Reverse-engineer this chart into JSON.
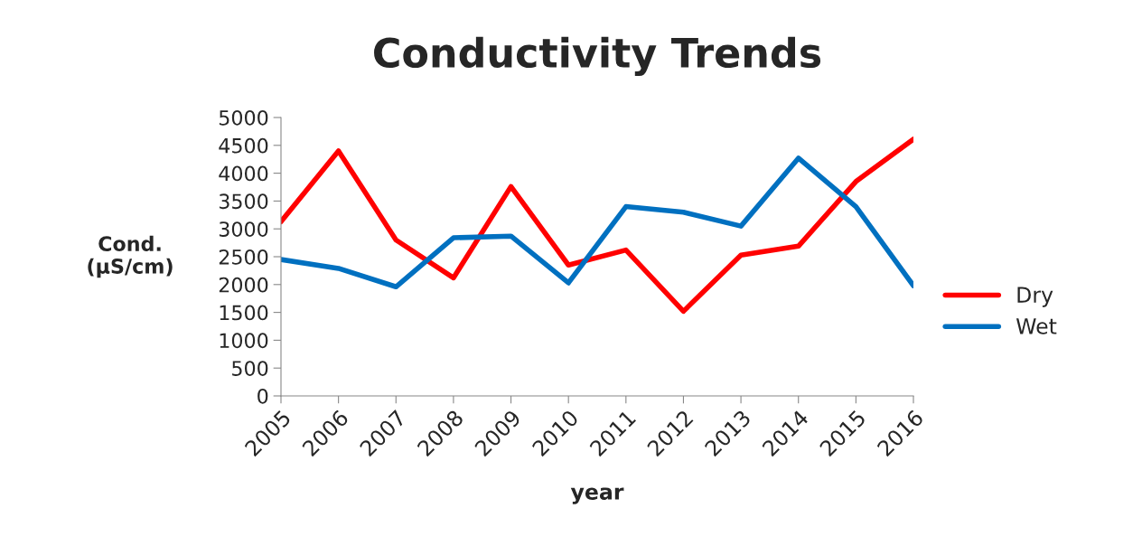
{
  "chart_data": {
    "type": "line",
    "title": "Conductivity Trends",
    "xlabel": "year",
    "ylabel": "Cond.\n(µS/cm)",
    "categories": [
      "2005",
      "2006",
      "2007",
      "2008",
      "2009",
      "2010",
      "2011",
      "2012",
      "2013",
      "2014",
      "2015",
      "2016"
    ],
    "series": [
      {
        "name": "Dry",
        "color": "#ff0000",
        "values": [
          3130,
          4400,
          2800,
          2120,
          3760,
          2350,
          2620,
          1520,
          2530,
          2690,
          3850,
          4610
        ]
      },
      {
        "name": "Wet",
        "color": "#0070c0",
        "values": [
          2450,
          2290,
          1960,
          2840,
          2870,
          2030,
          3400,
          3300,
          3050,
          4270,
          3400,
          1980
        ]
      }
    ],
    "ylim": [
      0,
      5000
    ],
    "yticks": [
      0,
      500,
      1000,
      1500,
      2000,
      2500,
      3000,
      3500,
      4000,
      4500,
      5000
    ],
    "grid": false,
    "legend": "right",
    "marker": "none",
    "line_style": "solid"
  }
}
